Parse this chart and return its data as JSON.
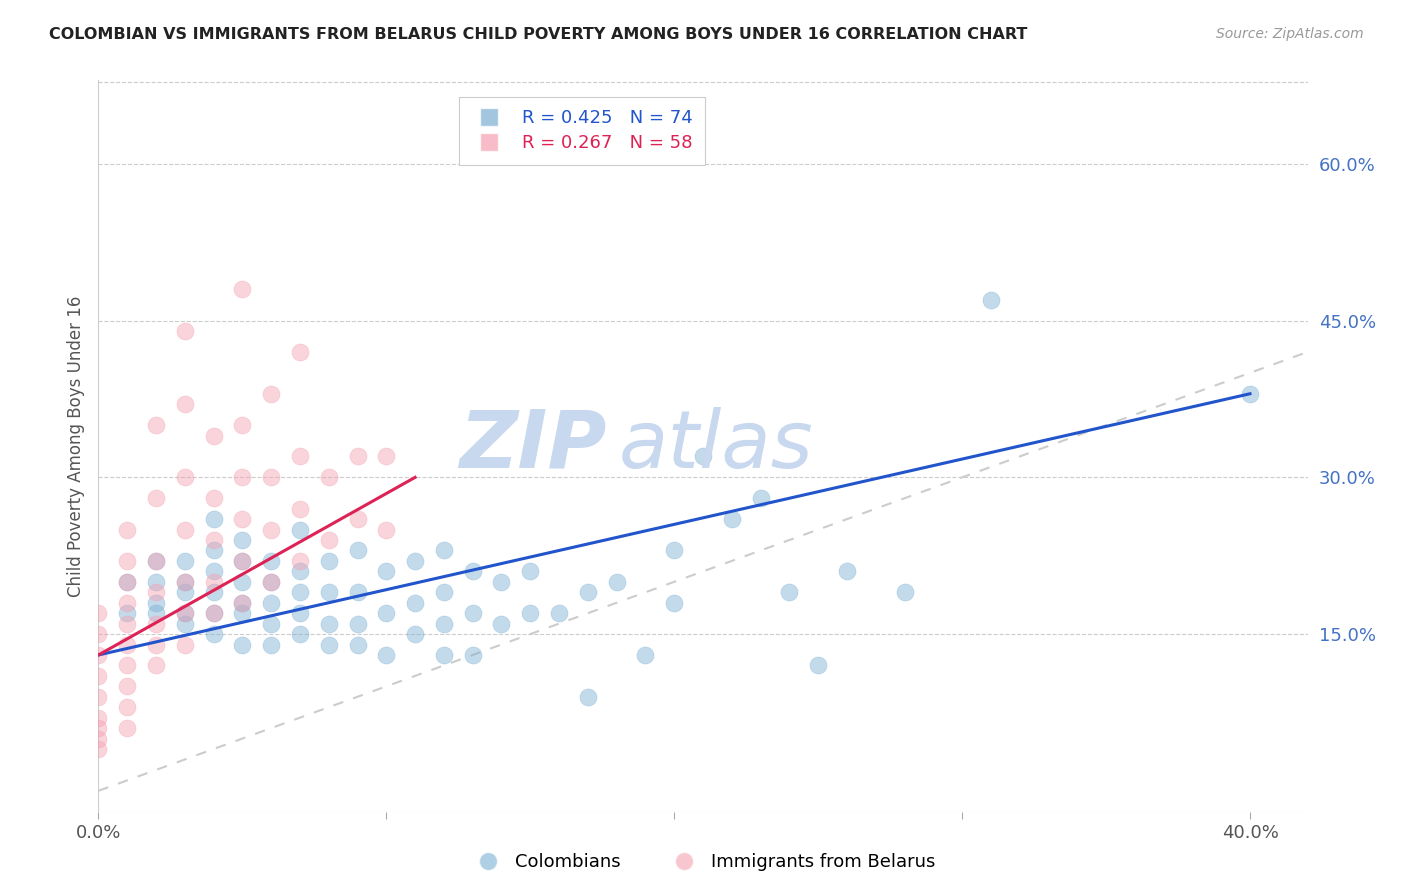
{
  "title": "COLOMBIAN VS IMMIGRANTS FROM BELARUS CHILD POVERTY AMONG BOYS UNDER 16 CORRELATION CHART",
  "source": "Source: ZipAtlas.com",
  "ylabel": "Child Poverty Among Boys Under 16",
  "x_tick_labels": [
    "0.0%",
    "",
    "",
    "",
    "40.0%"
  ],
  "x_tick_values": [
    0.0,
    0.1,
    0.2,
    0.3,
    0.4
  ],
  "y_tick_labels": [
    "15.0%",
    "30.0%",
    "45.0%",
    "60.0%"
  ],
  "y_tick_values": [
    0.15,
    0.3,
    0.45,
    0.6
  ],
  "xlim": [
    0.0,
    0.42
  ],
  "ylim": [
    -0.02,
    0.68
  ],
  "colombian_R": 0.425,
  "colombian_N": 74,
  "belarus_R": 0.267,
  "belarus_N": 58,
  "colombian_color": "#7bafd4",
  "belarus_color": "#f4a0b0",
  "colombian_trend_color": "#2255cc",
  "belarus_trend_color": "#dd2255",
  "diagonal_color": "#cccccc",
  "watermark_zip": "ZIP",
  "watermark_atlas": "atlas",
  "watermark_color": "#c8d8ee",
  "legend_label_colombian": "Colombians",
  "legend_label_belarus": "Immigrants from Belarus",
  "background_color": "#ffffff",
  "right_tick_color": "#4472C4",
  "colombian_x": [
    0.01,
    0.01,
    0.02,
    0.02,
    0.02,
    0.02,
    0.03,
    0.03,
    0.03,
    0.03,
    0.03,
    0.04,
    0.04,
    0.04,
    0.04,
    0.04,
    0.04,
    0.05,
    0.05,
    0.05,
    0.05,
    0.05,
    0.05,
    0.06,
    0.06,
    0.06,
    0.06,
    0.06,
    0.07,
    0.07,
    0.07,
    0.07,
    0.07,
    0.08,
    0.08,
    0.08,
    0.08,
    0.09,
    0.09,
    0.09,
    0.09,
    0.1,
    0.1,
    0.1,
    0.11,
    0.11,
    0.11,
    0.12,
    0.12,
    0.12,
    0.12,
    0.13,
    0.13,
    0.13,
    0.14,
    0.14,
    0.15,
    0.15,
    0.16,
    0.17,
    0.17,
    0.18,
    0.19,
    0.2,
    0.2,
    0.21,
    0.22,
    0.23,
    0.24,
    0.25,
    0.26,
    0.28,
    0.31,
    0.4
  ],
  "colombian_y": [
    0.17,
    0.2,
    0.17,
    0.18,
    0.2,
    0.22,
    0.16,
    0.17,
    0.19,
    0.2,
    0.22,
    0.15,
    0.17,
    0.19,
    0.21,
    0.23,
    0.26,
    0.14,
    0.17,
    0.18,
    0.2,
    0.22,
    0.24,
    0.14,
    0.16,
    0.18,
    0.2,
    0.22,
    0.15,
    0.17,
    0.19,
    0.21,
    0.25,
    0.14,
    0.16,
    0.19,
    0.22,
    0.14,
    0.16,
    0.19,
    0.23,
    0.13,
    0.17,
    0.21,
    0.15,
    0.18,
    0.22,
    0.13,
    0.16,
    0.19,
    0.23,
    0.13,
    0.17,
    0.21,
    0.16,
    0.2,
    0.17,
    0.21,
    0.17,
    0.09,
    0.19,
    0.2,
    0.13,
    0.18,
    0.23,
    0.32,
    0.26,
    0.28,
    0.19,
    0.12,
    0.21,
    0.19,
    0.47,
    0.38
  ],
  "belarus_x": [
    0.0,
    0.0,
    0.0,
    0.0,
    0.0,
    0.0,
    0.0,
    0.0,
    0.0,
    0.01,
    0.01,
    0.01,
    0.01,
    0.01,
    0.01,
    0.01,
    0.01,
    0.01,
    0.01,
    0.02,
    0.02,
    0.02,
    0.02,
    0.02,
    0.02,
    0.02,
    0.03,
    0.03,
    0.03,
    0.03,
    0.03,
    0.03,
    0.03,
    0.04,
    0.04,
    0.04,
    0.04,
    0.04,
    0.05,
    0.05,
    0.05,
    0.05,
    0.05,
    0.05,
    0.06,
    0.06,
    0.06,
    0.06,
    0.07,
    0.07,
    0.07,
    0.07,
    0.08,
    0.08,
    0.09,
    0.09,
    0.1,
    0.1
  ],
  "belarus_y": [
    0.04,
    0.05,
    0.06,
    0.07,
    0.09,
    0.11,
    0.13,
    0.15,
    0.17,
    0.06,
    0.08,
    0.1,
    0.12,
    0.14,
    0.16,
    0.18,
    0.2,
    0.22,
    0.25,
    0.12,
    0.14,
    0.16,
    0.19,
    0.22,
    0.28,
    0.35,
    0.14,
    0.17,
    0.2,
    0.25,
    0.3,
    0.37,
    0.44,
    0.17,
    0.2,
    0.24,
    0.28,
    0.34,
    0.18,
    0.22,
    0.26,
    0.3,
    0.35,
    0.48,
    0.2,
    0.25,
    0.3,
    0.38,
    0.22,
    0.27,
    0.32,
    0.42,
    0.24,
    0.3,
    0.26,
    0.32,
    0.25,
    0.32
  ],
  "colombian_trend_x": [
    0.0,
    0.4
  ],
  "colombian_trend_y": [
    0.13,
    0.38
  ],
  "belarus_trend_x": [
    0.0,
    0.11
  ],
  "belarus_trend_y": [
    0.13,
    0.3
  ]
}
